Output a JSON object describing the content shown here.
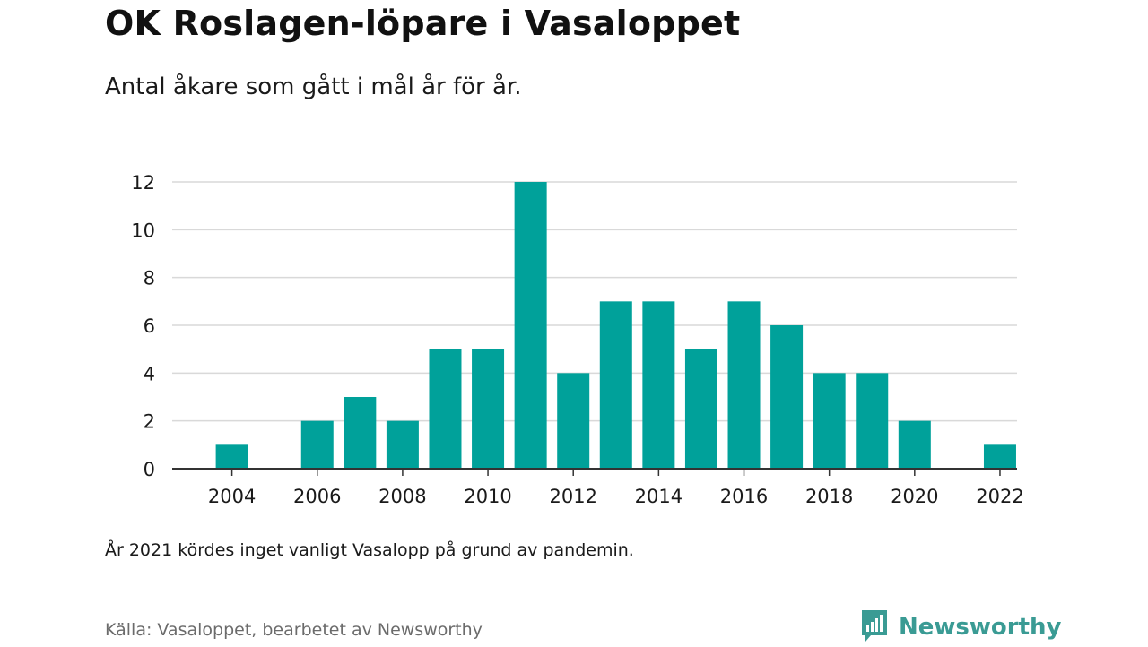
{
  "header": {
    "title": "OK Roslagen-löpare i Vasaloppet",
    "subtitle": "Antal åkare som gått i mål år för år."
  },
  "footer": {
    "note": "År 2021 kördes inget vanligt Vasalopp på grund av pandemin.",
    "source": "Källa: Vasaloppet, bearbetet av Newsworthy",
    "brand": "Newsworthy",
    "brand_icon": "bar-chart-speech-bubble-icon",
    "brand_color": "#3a9b94"
  },
  "chart_data": {
    "type": "bar",
    "x": [
      2004,
      2005,
      2006,
      2007,
      2008,
      2009,
      2010,
      2011,
      2012,
      2013,
      2014,
      2015,
      2016,
      2017,
      2018,
      2019,
      2020,
      2021,
      2022
    ],
    "values": [
      1,
      0,
      2,
      3,
      2,
      5,
      5,
      12,
      4,
      7,
      7,
      5,
      7,
      6,
      4,
      4,
      2,
      0,
      1
    ],
    "xticks": [
      "2004",
      "2006",
      "2008",
      "2010",
      "2012",
      "2014",
      "2016",
      "2018",
      "2020",
      "2022"
    ],
    "yticks": [
      "0",
      "2",
      "4",
      "6",
      "8",
      "10",
      "12"
    ],
    "ylim": [
      0,
      12
    ],
    "grid": true,
    "bar_color": "#00a19a",
    "grid_color": "#d9d9d9",
    "axis_color": "#333333"
  }
}
